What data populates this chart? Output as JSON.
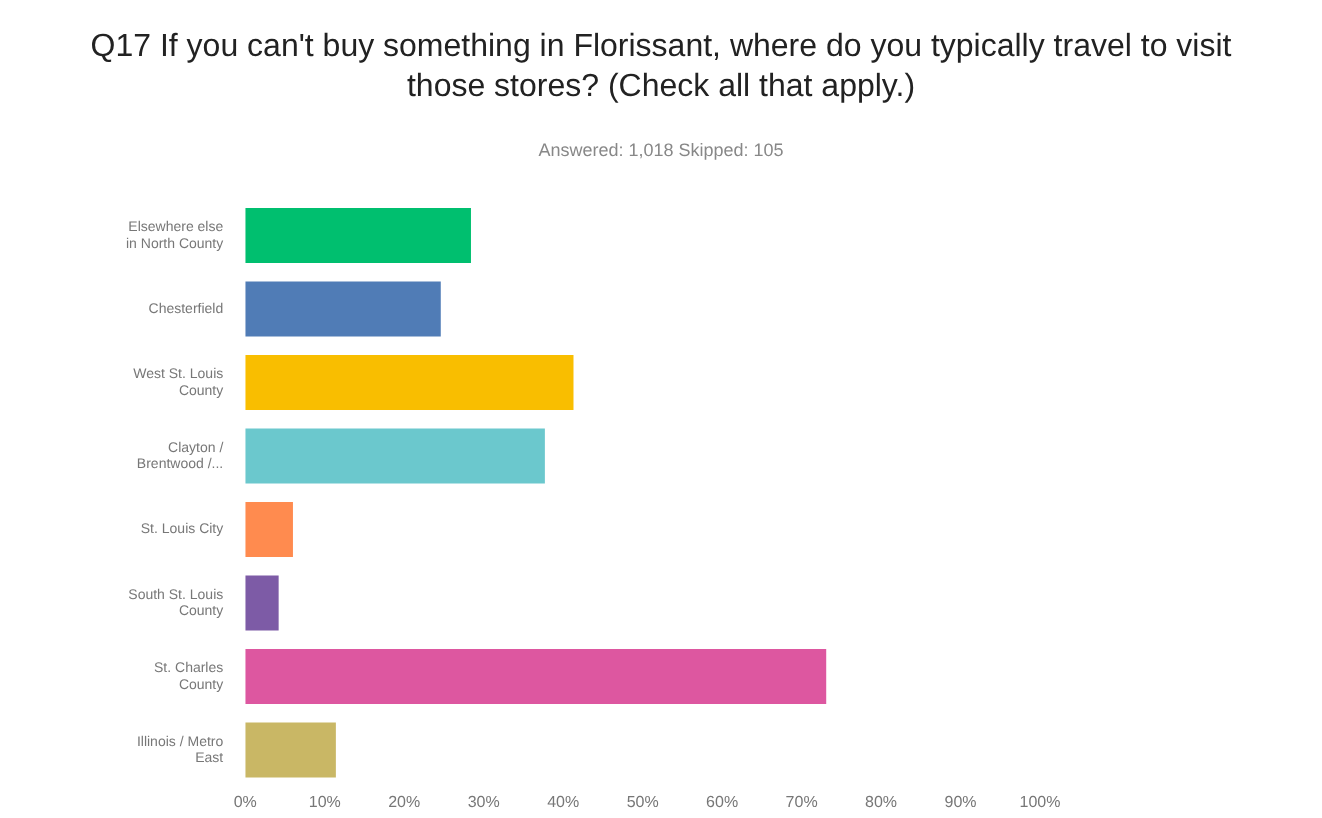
{
  "chart_data": {
    "type": "bar",
    "orientation": "horizontal",
    "title": "Q17 If you can't buy something in Florissant, where do you typically travel to visit those stores? (Check all that apply.)",
    "subtitle": "Answered: 1,018    Skipped: 105",
    "categories": [
      "Elsewhere else in North County",
      "Chesterfield",
      "West St. Louis County",
      "Clayton / Brentwood /...",
      "St. Louis City",
      "South St. Louis County",
      "St. Charles County",
      "Illinois / Metro East"
    ],
    "values": [
      28.4,
      24.6,
      41.3,
      37.7,
      6.0,
      4.2,
      73.1,
      11.4
    ],
    "colors": [
      "#00bf6f",
      "#507cb6",
      "#f9be00",
      "#6bc8cd",
      "#ff8b4f",
      "#7d5ba6",
      "#dd57a0",
      "#c9b765"
    ],
    "xlim": [
      0,
      100
    ],
    "xticks": [
      {
        "value": 0,
        "label": "0%"
      },
      {
        "value": 10,
        "label": "10%"
      },
      {
        "value": 20,
        "label": "20%"
      },
      {
        "value": 30,
        "label": "30%"
      },
      {
        "value": 40,
        "label": "40%"
      },
      {
        "value": 50,
        "label": "50%"
      },
      {
        "value": 60,
        "label": "60%"
      },
      {
        "value": 70,
        "label": "70%"
      },
      {
        "value": 80,
        "label": "80%"
      },
      {
        "value": 90,
        "label": "90%"
      },
      {
        "value": 100,
        "label": "100%"
      }
    ]
  }
}
